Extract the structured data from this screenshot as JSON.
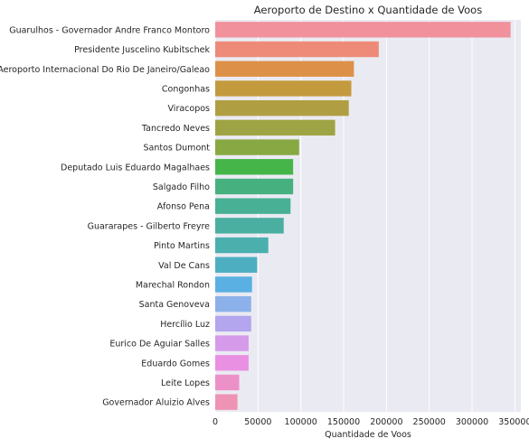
{
  "chart_data": {
    "type": "bar",
    "orientation": "horizontal",
    "title": "Aeroporto de Destino x Quantidade de Voos",
    "xlabel": "Quantidade de Voos",
    "ylabel": "",
    "xlim": [
      0,
      357000
    ],
    "xticks": [
      0,
      50000,
      100000,
      150000,
      200000,
      250000,
      300000,
      350000
    ],
    "grid": true,
    "categories": [
      "Guarulhos - Governador Andre Franco Montoro",
      "Presidente Juscelino Kubitschek",
      "Aeroporto Internacional Do Rio De Janeiro/Galeao",
      "Congonhas",
      "Viracopos",
      "Tancredo Neves",
      "Santos Dumont",
      "Deputado Luis Eduardo Magalhaes",
      "Salgado Filho",
      "Afonso Pena",
      "Guararapes - Gilberto Freyre",
      "Pinto Martins",
      "Val De Cans",
      "Marechal Rondon",
      "Santa Genoveva",
      "Hercílio Luz",
      "Eurico De Aguiar Salles",
      "Eduardo Gomes",
      "Leite Lopes",
      "Governador Aluizio Alves"
    ],
    "values": [
      345000,
      191000,
      162000,
      159000,
      156000,
      140000,
      98000,
      91000,
      91000,
      88000,
      80000,
      62000,
      49000,
      43000,
      42000,
      42000,
      39000,
      39000,
      28000,
      26000
    ],
    "colors": [
      "#f0919b",
      "#ee8b78",
      "#dd9148",
      "#c49a3f",
      "#b09f42",
      "#9ea443",
      "#88a843",
      "#45b54a",
      "#46b17f",
      "#48b094",
      "#4aafa1",
      "#4bafae",
      "#4daec2",
      "#5ab0e2",
      "#8cb1ea",
      "#b3a5ee",
      "#d59ae9",
      "#e990e3",
      "#ec91c8",
      "#ee93b3"
    ]
  }
}
